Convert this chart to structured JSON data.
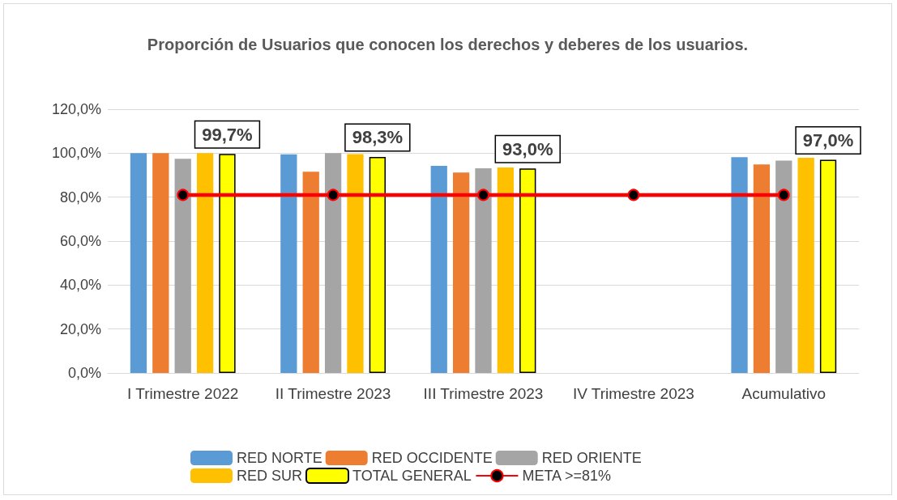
{
  "chart_data": {
    "type": "bar",
    "title": "Proporción de Usuarios que conocen los derechos y deberes de los usuarios.",
    "categories": [
      "I Trimestre 2022",
      "II Trimestre 2023",
      "III Trimestre 2023",
      "IV Trimestre 2023",
      "Acumulativo"
    ],
    "series": [
      {
        "name": "RED NORTE",
        "color": "#5b9bd5",
        "values": [
          100,
          99.5,
          94.2,
          null,
          98.2
        ]
      },
      {
        "name": "RED OCCIDENTE",
        "color": "#ed7d31",
        "values": [
          100,
          91.6,
          91.2,
          null,
          94.9
        ]
      },
      {
        "name": "RED ORIENTE",
        "color": "#a5a5a5",
        "values": [
          97.5,
          100,
          93.1,
          null,
          96.6
        ]
      },
      {
        "name": "RED SUR",
        "color": "#ffc000",
        "values": [
          100,
          99.6,
          93.5,
          null,
          97.9
        ]
      },
      {
        "name": "TOTAL GENERAL",
        "color": "#ffff00",
        "values": [
          99.7,
          98.3,
          93.0,
          null,
          97.0
        ],
        "value_labels": [
          "99,7%",
          "98,3%",
          "93,0%",
          null,
          "97,0%"
        ]
      },
      {
        "name": "META >=81%",
        "type": "line",
        "color": "#ff0000",
        "marker": "circle",
        "values": [
          81,
          81,
          81,
          81,
          81
        ]
      }
    ],
    "ylim": [
      0,
      120
    ],
    "yticks": [
      {
        "value": 0,
        "label": "0,0%"
      },
      {
        "value": 20,
        "label": "20,0%"
      },
      {
        "value": 40,
        "label": "40,0%"
      },
      {
        "value": 60,
        "label": "60,0%"
      },
      {
        "value": 80,
        "label": "80,0%"
      },
      {
        "value": 100,
        "label": "100,0%"
      },
      {
        "value": 120,
        "label": "120,0%"
      }
    ],
    "grid": "y",
    "legend": "bottom"
  }
}
